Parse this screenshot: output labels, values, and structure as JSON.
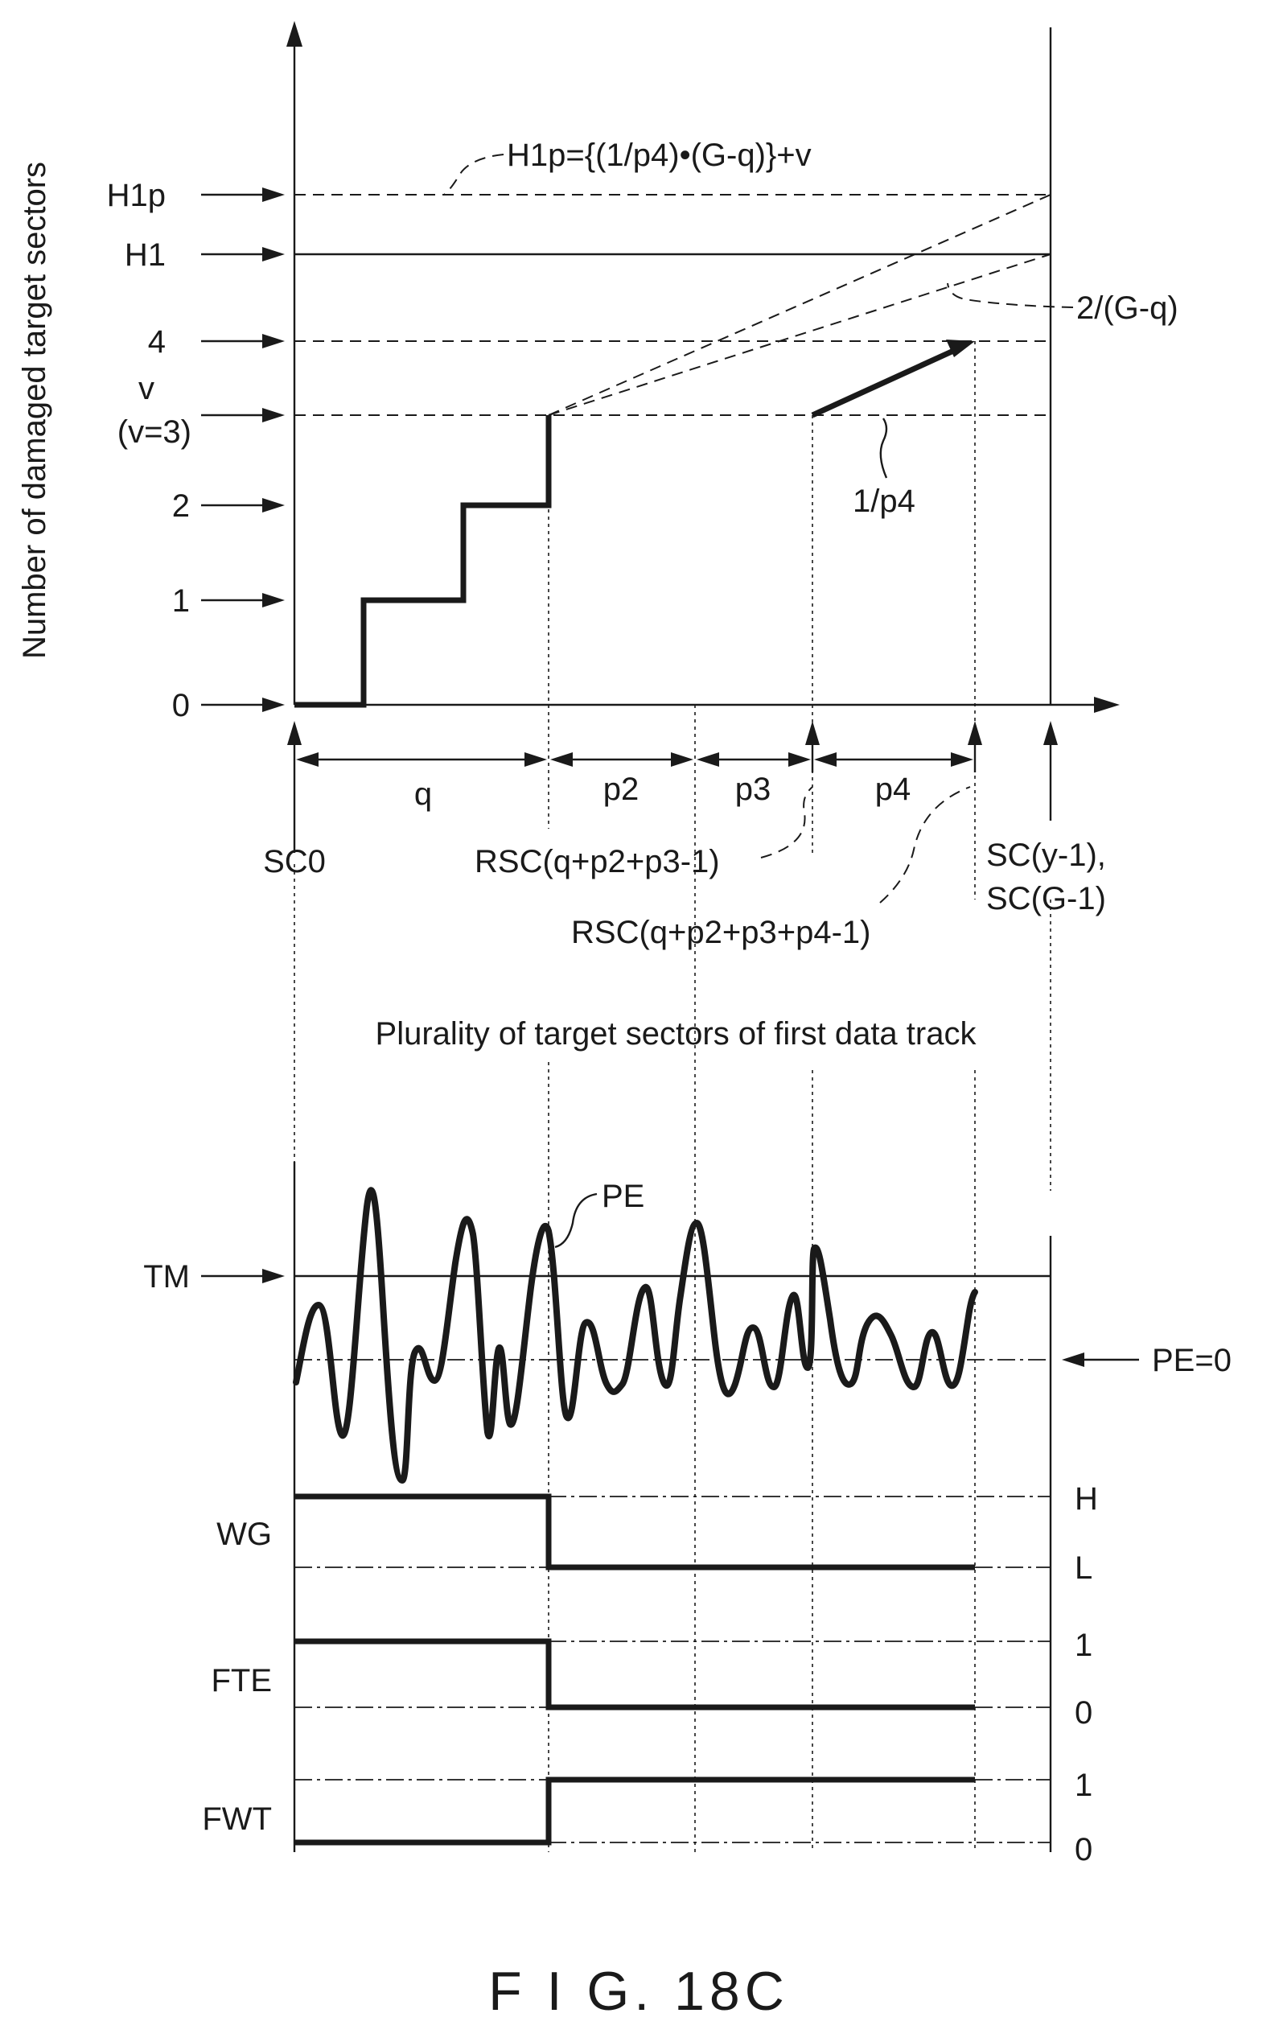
{
  "figure": {
    "caption": "F I G. 18C",
    "y_axis_label": "Number of damaged target sectors",
    "y_level_labels": {
      "h1p": "H1p",
      "h1": "H1",
      "four": "4",
      "v": "v",
      "v_eq": "(v=3)",
      "two": "2",
      "one": "1",
      "zero": "0"
    },
    "formulas": {
      "h1p_formula": "H1p={(1/p4)•(G-q)}+v",
      "slope_a": "2/(G-q)",
      "slope_b": "1/p4"
    },
    "intervals": {
      "q": "q",
      "p2": "p2",
      "p3": "p3",
      "p4": "p4"
    },
    "sector_labels": {
      "sc0": "SC0",
      "rsc_a": "RSC(q+p2+p3-1)",
      "rsc_b": "RSC(q+p2+p3+p4-1)",
      "sc_end_1": "SC(y-1),",
      "sc_end_2": "SC(G-1)"
    },
    "sectors_caption": "Plurality of target sectors of first data track",
    "signals": {
      "tm": "TM",
      "pe": "PE",
      "pe_zero": "PE=0",
      "wg": "WG",
      "wg_high": "H",
      "wg_low": "L",
      "fte": "FTE",
      "fte_one": "1",
      "fte_zero": "0",
      "fwt": "FWT",
      "fwt_one": "1",
      "fwt_zero": "0"
    },
    "step_series": {
      "description_free": true,
      "steps": [
        0,
        1,
        2,
        3
      ]
    },
    "colors": {
      "ink": "#1a1a1a",
      "background": "#ffffff"
    }
  }
}
